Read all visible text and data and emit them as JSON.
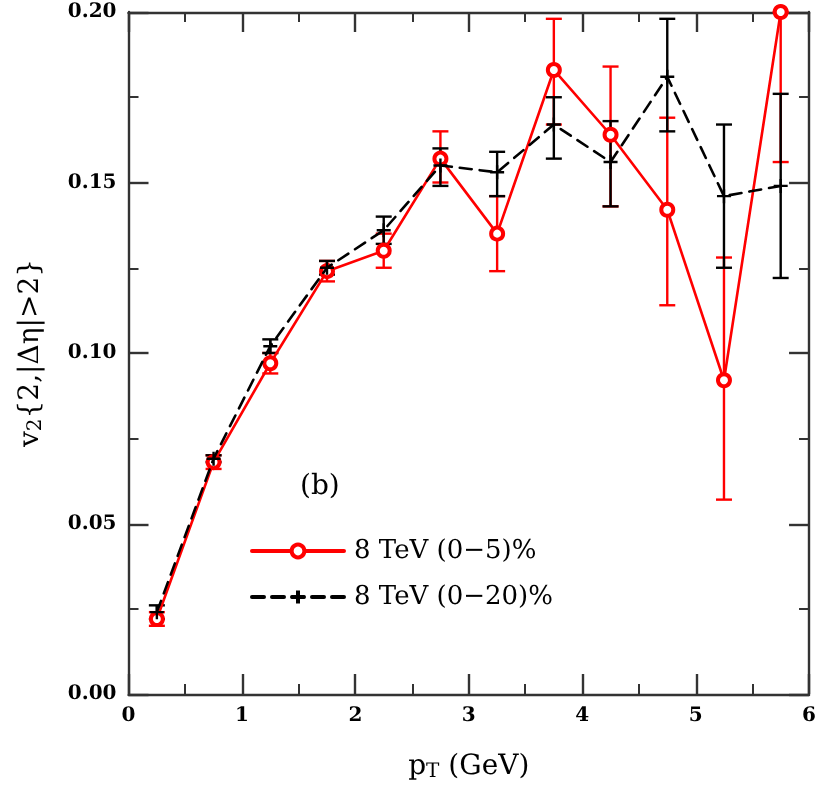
{
  "chart_data": {
    "type": "line",
    "xlabel": "p$_{T}$ (GeV)",
    "ylabel": "v$_{2}${2,|Δη|>2}",
    "annotations": [
      "(b)"
    ],
    "x": [
      0.25,
      0.75,
      1.25,
      1.75,
      2.25,
      2.75,
      3.25,
      3.75,
      4.25,
      4.75,
      5.25,
      5.75
    ],
    "series": [
      {
        "name": "8 TeV (0−5)%",
        "color": "#ff0000",
        "marker": "circle",
        "line_style": "solid",
        "values": [
          0.022,
          0.068,
          0.097,
          0.124,
          0.13,
          0.157,
          0.135,
          0.183,
          0.164,
          0.142,
          0.092,
          0.2
        ],
        "errors": [
          0.002,
          0.002,
          0.003,
          0.003,
          0.005,
          [
            0.15,
            0.165
          ],
          [
            0.124,
            0.146
          ],
          [
            0.167,
            0.198
          ],
          [
            0.143,
            0.184
          ],
          [
            0.114,
            0.169
          ],
          [
            0.057,
            0.128
          ],
          [
            0.156,
            0.2
          ]
        ]
      },
      {
        "name": "8 TeV (0−20)%",
        "color": "#000000",
        "marker": "cross",
        "line_style": "dashed",
        "values": [
          0.024,
          0.069,
          0.102,
          0.125,
          0.136,
          0.155,
          0.153,
          0.167,
          0.156,
          0.181,
          0.146,
          0.149
        ],
        "errors": [
          0.002,
          0.001,
          0.002,
          0.002,
          0.004,
          [
            0.149,
            0.16
          ],
          [
            0.146,
            0.159
          ],
          [
            0.157,
            0.175
          ],
          [
            0.143,
            0.168
          ],
          [
            0.165,
            0.198
          ],
          [
            0.125,
            0.167
          ],
          [
            0.122,
            0.176
          ]
        ]
      }
    ],
    "xlim": [
      0,
      6
    ],
    "xticks": [
      0,
      1,
      2,
      3,
      4,
      5,
      6
    ],
    "ylim": [
      0,
      0.2
    ],
    "yticks": [
      {
        "value": 0,
        "label": "0.00"
      },
      {
        "value": 0.05,
        "label": "0.05"
      },
      {
        "value": 0.1,
        "label": "0.10"
      },
      {
        "value": 0.15,
        "label": "0.15"
      },
      {
        "value": 0.2,
        "label": "0.20"
      }
    ],
    "grid": false,
    "legend": "bottom left"
  }
}
